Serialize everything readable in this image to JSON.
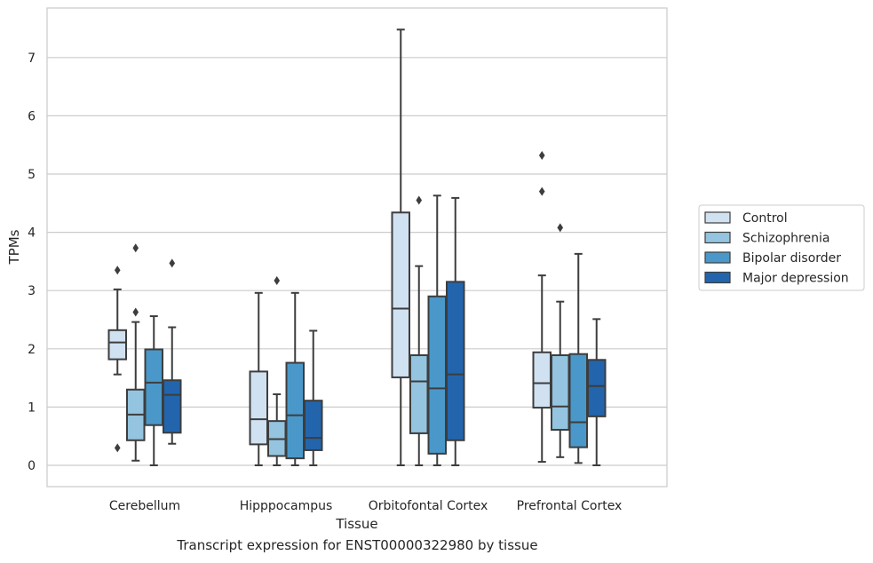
{
  "caption": "Transcript expression for ENST00000322980 by tissue",
  "chart_data": {
    "type": "box",
    "xlabel": "Tissue",
    "ylabel": "TPMs",
    "ylim": [
      -0.35,
      7.85
    ],
    "yticks": [
      0,
      1,
      2,
      3,
      4,
      5,
      6,
      7
    ],
    "categories": [
      "Cerebellum",
      "Hipppocampus",
      "Orbitofontal Cortex",
      "Prefrontal Cortex"
    ],
    "grid": "horizontal",
    "legend_position": "right",
    "series": [
      {
        "name": "Control",
        "color": "#d0e1f2",
        "boxes": [
          {
            "whisker_low": 1.56,
            "q1": 1.82,
            "median": 2.11,
            "q3": 2.32,
            "whisker_high": 3.02,
            "outliers": [
              0.3,
              3.35
            ]
          },
          {
            "whisker_low": 0.0,
            "q1": 0.36,
            "median": 0.79,
            "q3": 1.61,
            "whisker_high": 2.96,
            "outliers": []
          },
          {
            "whisker_low": 0.0,
            "q1": 1.51,
            "median": 2.69,
            "q3": 4.34,
            "whisker_high": 7.48,
            "outliers": []
          },
          {
            "whisker_low": 0.06,
            "q1": 0.99,
            "median": 1.41,
            "q3": 1.94,
            "whisker_high": 3.26,
            "outliers": [
              4.7,
              5.32
            ]
          }
        ]
      },
      {
        "name": "Schizophrenia",
        "color": "#94c4df",
        "boxes": [
          {
            "whisker_low": 0.08,
            "q1": 0.43,
            "median": 0.87,
            "q3": 1.3,
            "whisker_high": 2.46,
            "outliers": [
              2.63,
              3.73
            ]
          },
          {
            "whisker_low": 0.0,
            "q1": 0.16,
            "median": 0.45,
            "q3": 0.76,
            "whisker_high": 1.22,
            "outliers": [
              3.17
            ]
          },
          {
            "whisker_low": 0.0,
            "q1": 0.55,
            "median": 1.44,
            "q3": 1.89,
            "whisker_high": 3.42,
            "outliers": [
              4.55
            ]
          },
          {
            "whisker_low": 0.14,
            "q1": 0.61,
            "median": 1.01,
            "q3": 1.89,
            "whisker_high": 2.81,
            "outliers": [
              4.08
            ]
          }
        ]
      },
      {
        "name": "Bipolar disorder",
        "color": "#4a98c9",
        "boxes": [
          {
            "whisker_low": 0.0,
            "q1": 0.69,
            "median": 1.42,
            "q3": 1.99,
            "whisker_high": 2.56,
            "outliers": []
          },
          {
            "whisker_low": 0.0,
            "q1": 0.12,
            "median": 0.86,
            "q3": 1.76,
            "whisker_high": 2.96,
            "outliers": []
          },
          {
            "whisker_low": 0.0,
            "q1": 0.2,
            "median": 1.32,
            "q3": 2.9,
            "whisker_high": 4.63,
            "outliers": []
          },
          {
            "whisker_low": 0.04,
            "q1": 0.31,
            "median": 0.74,
            "q3": 1.91,
            "whisker_high": 3.63,
            "outliers": []
          }
        ]
      },
      {
        "name": "Major depression",
        "color": "#2265ad",
        "boxes": [
          {
            "whisker_low": 0.37,
            "q1": 0.56,
            "median": 1.21,
            "q3": 1.46,
            "whisker_high": 2.37,
            "outliers": [
              3.47
            ]
          },
          {
            "whisker_low": 0.0,
            "q1": 0.26,
            "median": 0.47,
            "q3": 1.11,
            "whisker_high": 2.31,
            "outliers": []
          },
          {
            "whisker_low": 0.0,
            "q1": 0.43,
            "median": 1.56,
            "q3": 3.15,
            "whisker_high": 4.59,
            "outliers": []
          },
          {
            "whisker_low": 0.0,
            "q1": 0.84,
            "median": 1.36,
            "q3": 1.81,
            "whisker_high": 2.51,
            "outliers": []
          }
        ]
      }
    ]
  }
}
